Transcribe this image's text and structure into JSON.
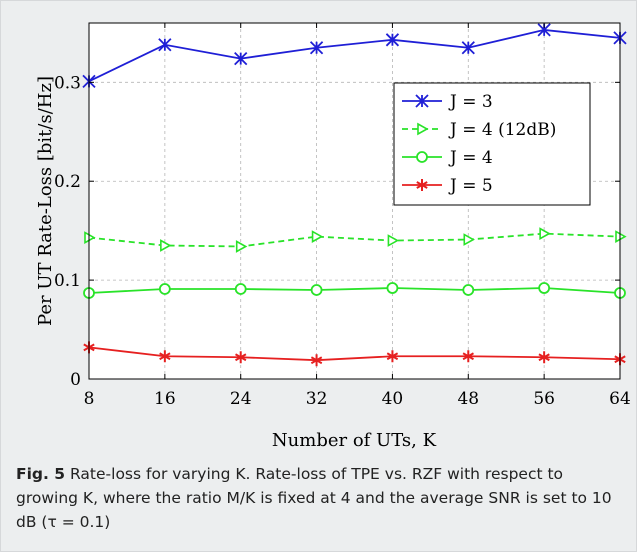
{
  "chart_data": {
    "type": "line",
    "xlabel": "Number of UTs, K",
    "ylabel": "Per UT Rate-Loss [bit/s/Hz]",
    "x": [
      8,
      16,
      24,
      32,
      40,
      48,
      56,
      64
    ],
    "xlim": [
      8,
      64
    ],
    "ylim": [
      0,
      0.36
    ],
    "xticks": [
      "8",
      "16",
      "24",
      "32",
      "40",
      "48",
      "56",
      "64"
    ],
    "yticks": [
      {
        "value": 0,
        "label": "0"
      },
      {
        "value": 0.1,
        "label": "0.1"
      },
      {
        "value": 0.2,
        "label": "0.2"
      },
      {
        "value": 0.3,
        "label": "0.3"
      }
    ],
    "grid": true,
    "legend_position": "top-right",
    "series": [
      {
        "name": "J = 3",
        "color": "#1f1fd6",
        "marker": "x-star",
        "dash": "solid",
        "values": [
          0.301,
          0.338,
          0.324,
          0.335,
          0.343,
          0.335,
          0.353,
          0.345
        ]
      },
      {
        "name": "J = 4 (12dB)",
        "color": "#29e329",
        "marker": "triangle-right",
        "dash": "dashed",
        "values": [
          0.143,
          0.135,
          0.134,
          0.144,
          0.14,
          0.141,
          0.147,
          0.144
        ]
      },
      {
        "name": "J = 4",
        "color": "#29e329",
        "marker": "circle",
        "dash": "solid",
        "values": [
          0.087,
          0.091,
          0.091,
          0.09,
          0.092,
          0.09,
          0.092,
          0.087
        ]
      },
      {
        "name": "J = 5",
        "color": "#e62020",
        "marker": "star",
        "dash": "solid",
        "values": [
          0.032,
          0.023,
          0.022,
          0.019,
          0.023,
          0.023,
          0.022,
          0.02
        ]
      }
    ]
  },
  "caption": {
    "label": "Fig. 5",
    "text": " Rate-loss for varying K. Rate-loss of TPE vs. RZF with respect to growing K, where the ratio M/K is fixed at 4 and the average SNR is set to 10 dB (τ = 0.1)"
  }
}
